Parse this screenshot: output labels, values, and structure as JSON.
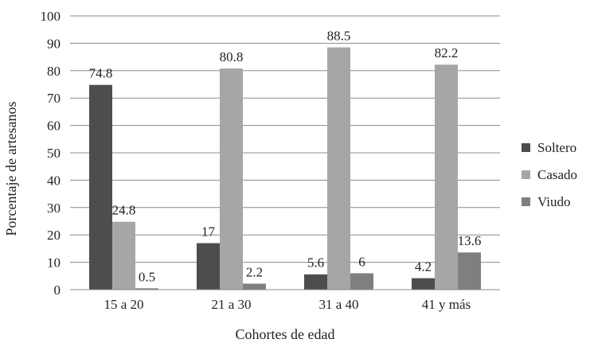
{
  "chart_data": {
    "type": "bar",
    "title": "",
    "xlabel": "Cohortes de edad",
    "ylabel": "Porcentaje de artesanos",
    "ylim": [
      0,
      100
    ],
    "yticks": [
      "0",
      "10",
      "20",
      "30",
      "40",
      "50",
      "60",
      "70",
      "80",
      "90",
      "100"
    ],
    "grid": true,
    "legend_position": "right",
    "categories": [
      "15 a 20",
      "21 a 30",
      "31 a 40",
      "41 y más"
    ],
    "series": [
      {
        "name": "Soltero",
        "color": "#4d4d4d",
        "values": [
          74.8,
          17,
          5.6,
          4.2
        ],
        "labels": [
          "74.8",
          "17",
          "5.6",
          "4.2"
        ]
      },
      {
        "name": "Casado",
        "color": "#a6a6a6",
        "values": [
          24.8,
          80.8,
          88.5,
          82.2
        ],
        "labels": [
          "24.8",
          "80.8",
          "88.5",
          "82.2"
        ]
      },
      {
        "name": "Viudo",
        "color": "#7f7f7f",
        "values": [
          0.5,
          2.2,
          6,
          13.6
        ],
        "labels": [
          "0.5",
          "2.2",
          "6",
          "13.6"
        ]
      }
    ]
  }
}
